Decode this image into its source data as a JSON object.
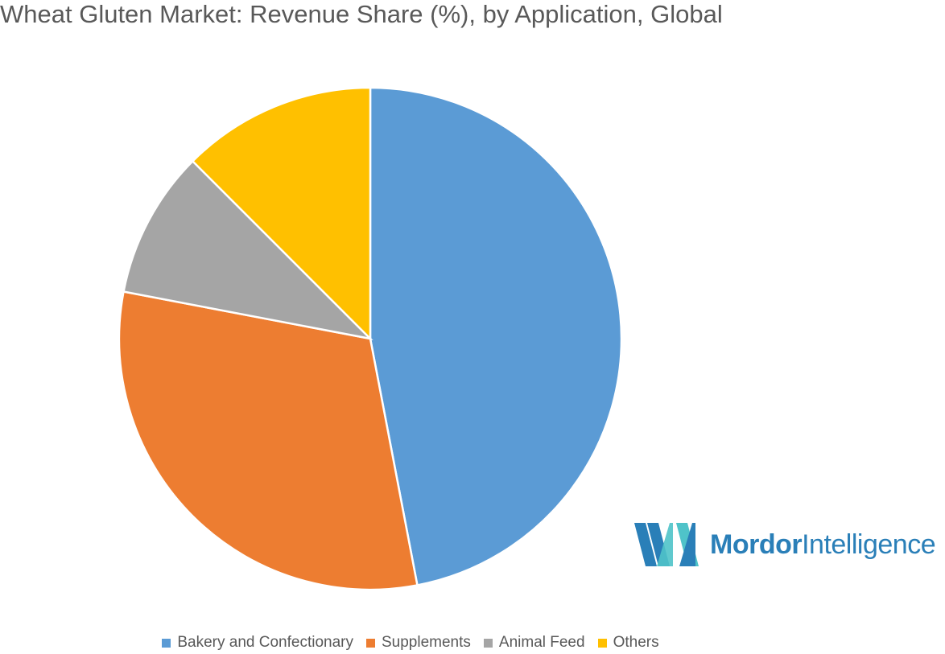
{
  "chart_data": {
    "type": "pie",
    "title": "Wheat Gluten Market: Revenue Share (%), by Application, Global",
    "categories": [
      "Bakery and Confectionary",
      "Supplements",
      "Animal Feed",
      "Others"
    ],
    "values": [
      47,
      31,
      9.5,
      12.5
    ],
    "colors": [
      "#5b9bd5",
      "#ed7d31",
      "#a5a5a5",
      "#ffc000"
    ],
    "legend_position": "bottom",
    "start_angle": "12 o'clock",
    "direction": "clockwise"
  },
  "brand": {
    "name_bold": "Mordor",
    "name_regular": "Intelligence",
    "logo_icon": "mordor-logo-icon",
    "logo_colors": [
      "#2a7fb8",
      "#4fc3c9"
    ]
  }
}
